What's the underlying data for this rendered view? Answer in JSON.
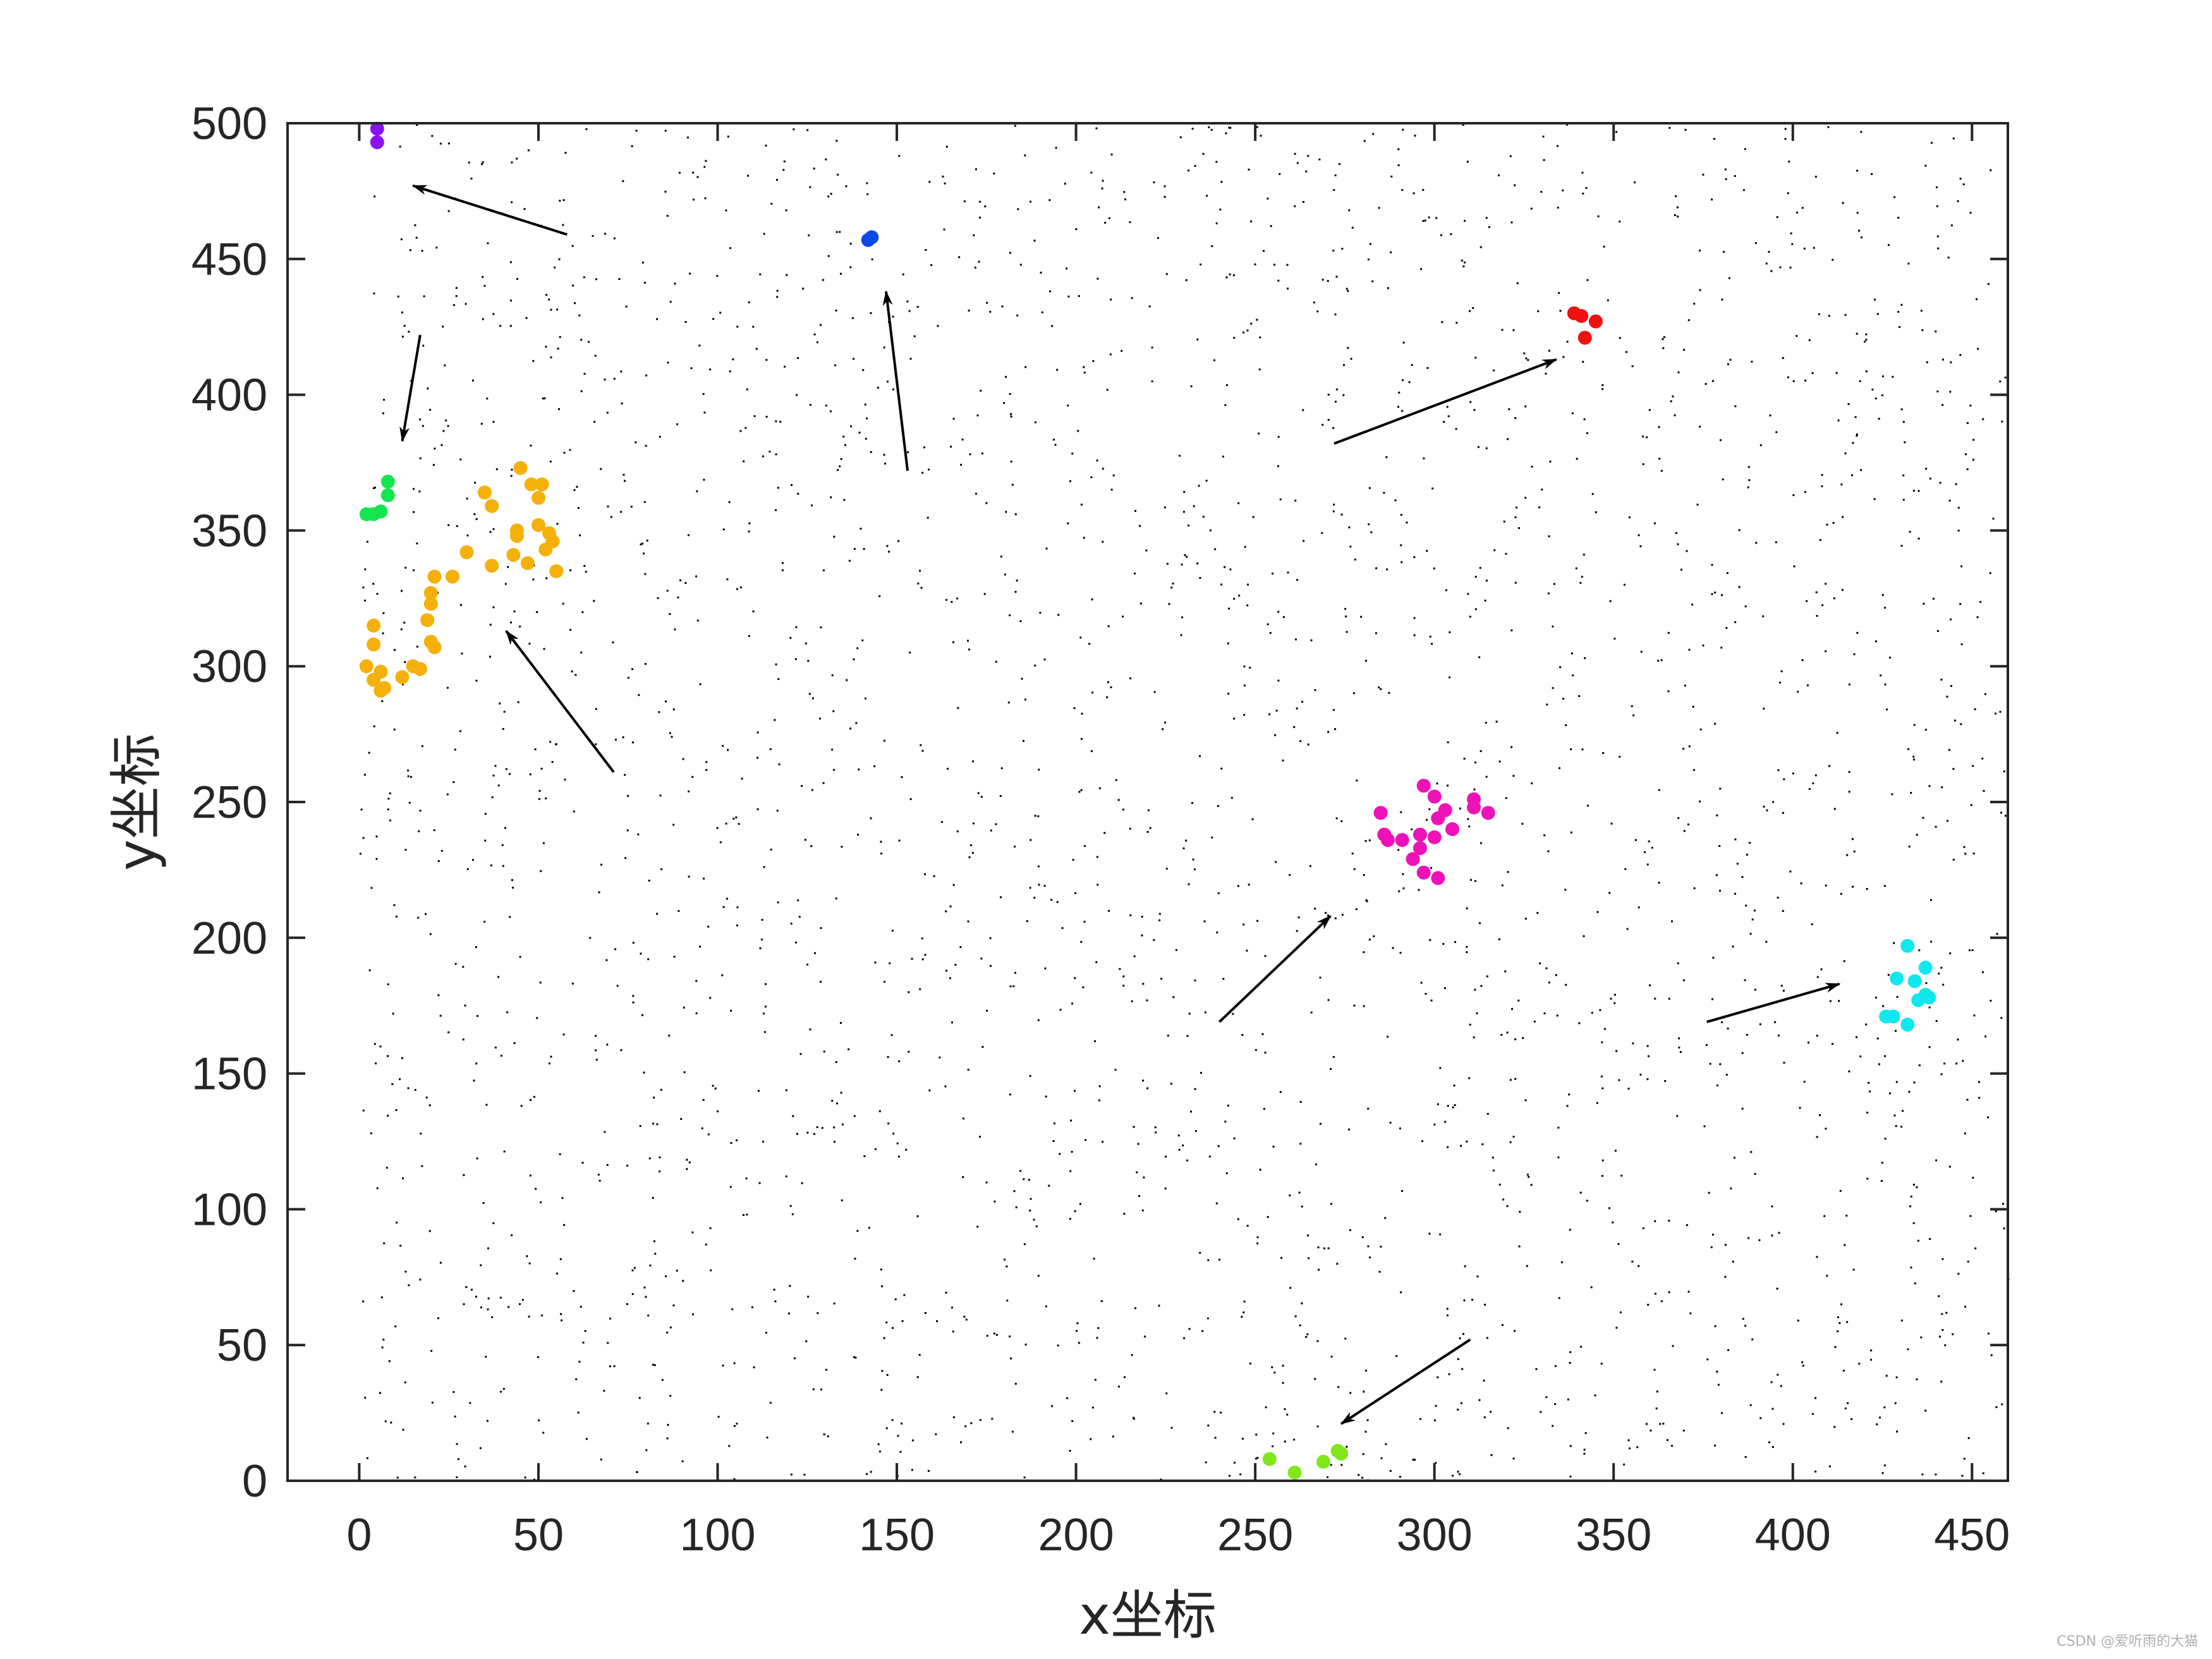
{
  "chart_data": {
    "type": "scatter",
    "title": "",
    "xlabel": "x坐标",
    "ylabel": "y坐标",
    "xlim": [
      -20,
      460
    ],
    "ylim": [
      0,
      500
    ],
    "xticks": [
      "0",
      "50",
      "100",
      "150",
      "200",
      "250",
      "300",
      "350",
      "400",
      "450"
    ],
    "yticks": [
      "0",
      "50",
      "100",
      "150",
      "200",
      "250",
      "300",
      "350",
      "400",
      "450",
      "500"
    ],
    "grid": false,
    "legend": "none",
    "background_points": {
      "description": "dense scatter of small black dots covering the whole plot area",
      "color": "#000000"
    },
    "series": [
      {
        "color": "#8a12f0",
        "points": [
          [
            5,
            498
          ],
          [
            5,
            493
          ]
        ]
      },
      {
        "color": "#0a48e8",
        "points": [
          [
            142,
            457
          ],
          [
            143,
            458
          ]
        ]
      },
      {
        "color": "#ee1111",
        "points": [
          [
            339,
            430
          ],
          [
            341,
            429
          ],
          [
            345,
            427
          ],
          [
            342,
            421
          ]
        ]
      },
      {
        "color": "#14e650",
        "points": [
          [
            2,
            356
          ],
          [
            4,
            356
          ],
          [
            6,
            357
          ],
          [
            8,
            363
          ],
          [
            8,
            368
          ]
        ]
      },
      {
        "color": "#f5b00a",
        "points": [
          [
            45,
            373
          ],
          [
            48,
            367
          ],
          [
            51,
            367
          ],
          [
            35,
            364
          ],
          [
            37,
            359
          ],
          [
            50,
            362
          ],
          [
            44,
            350
          ],
          [
            44,
            348
          ],
          [
            50,
            352
          ],
          [
            53,
            349
          ],
          [
            54,
            346
          ],
          [
            52,
            343
          ],
          [
            43,
            341
          ],
          [
            47,
            338
          ],
          [
            37,
            337
          ],
          [
            55,
            335
          ],
          [
            30,
            342
          ],
          [
            26,
            333
          ],
          [
            21,
            333
          ],
          [
            20,
            327
          ],
          [
            20,
            323
          ],
          [
            19,
            317
          ],
          [
            20,
            309
          ],
          [
            21,
            307
          ],
          [
            4,
            315
          ],
          [
            4,
            308
          ],
          [
            2,
            300
          ],
          [
            6,
            298
          ],
          [
            15,
            300
          ],
          [
            17,
            299
          ],
          [
            12,
            296
          ],
          [
            4,
            295
          ],
          [
            7,
            292
          ],
          [
            6,
            291
          ]
        ]
      },
      {
        "color": "#ee11b8",
        "points": [
          [
            297,
            256
          ],
          [
            300,
            252
          ],
          [
            311,
            251
          ],
          [
            311,
            248
          ],
          [
            315,
            246
          ],
          [
            285,
            246
          ],
          [
            303,
            247
          ],
          [
            301,
            244
          ],
          [
            305,
            240
          ],
          [
            286,
            238
          ],
          [
            296,
            238
          ],
          [
            300,
            237
          ],
          [
            287,
            236
          ],
          [
            291,
            236
          ],
          [
            296,
            233
          ],
          [
            294,
            229
          ],
          [
            297,
            224
          ],
          [
            301,
            222
          ]
        ]
      },
      {
        "color": "#10e8ee",
        "points": [
          [
            432,
            197
          ],
          [
            437,
            189
          ],
          [
            429,
            185
          ],
          [
            434,
            184
          ],
          [
            437,
            179
          ],
          [
            435,
            177
          ],
          [
            438,
            178
          ],
          [
            426,
            171
          ],
          [
            428,
            171
          ],
          [
            432,
            168
          ]
        ]
      },
      {
        "color": "#80e81a",
        "points": [
          [
            254,
            8
          ],
          [
            261,
            3
          ],
          [
            269,
            7
          ],
          [
            273,
            11
          ],
          [
            274,
            10
          ]
        ]
      }
    ],
    "annotations": [
      {
        "type": "arrow",
        "from": [
          58,
          459
        ],
        "to": [
          15,
          477
        ]
      },
      {
        "type": "arrow",
        "from": [
          17,
          422
        ],
        "to": [
          12,
          383
        ]
      },
      {
        "type": "arrow",
        "from": [
          153,
          372
        ],
        "to": [
          147,
          438
        ]
      },
      {
        "type": "arrow",
        "from": [
          272,
          382
        ],
        "to": [
          334,
          413
        ]
      },
      {
        "type": "arrow",
        "from": [
          71,
          261
        ],
        "to": [
          41,
          313
        ]
      },
      {
        "type": "arrow",
        "from": [
          240,
          169
        ],
        "to": [
          271,
          208
        ]
      },
      {
        "type": "arrow",
        "from": [
          376,
          169
        ],
        "to": [
          413,
          183
        ]
      },
      {
        "type": "arrow",
        "from": [
          310,
          52
        ],
        "to": [
          274,
          21
        ]
      }
    ]
  },
  "watermark": "CSDN @爱听雨的大猫"
}
